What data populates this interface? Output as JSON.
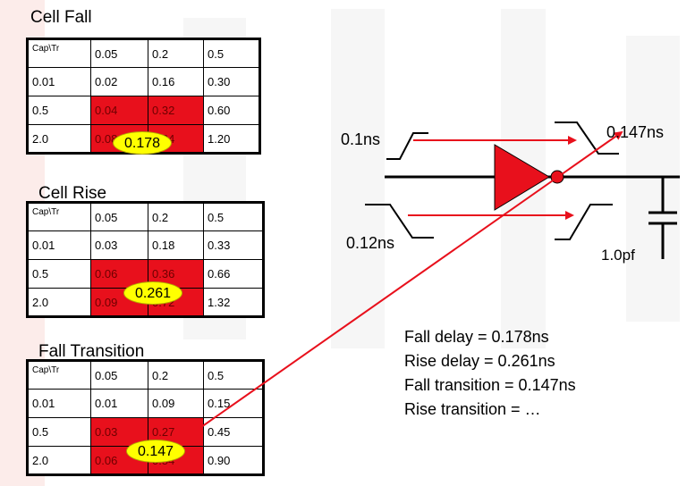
{
  "tables": [
    {
      "title": "Cell Fall",
      "rows": [
        [
          "Cap\\Tr",
          "0.05",
          "0.2",
          "0.5"
        ],
        [
          "0.01",
          "0.02",
          "0.16",
          "0.30"
        ],
        [
          "0.5",
          "0.04",
          "0.32",
          "0.60"
        ],
        [
          "2.0",
          "0.08",
          "0.64",
          "1.20"
        ]
      ],
      "result": "0.178"
    },
    {
      "title": "Cell Rise",
      "rows": [
        [
          "Cap\\Tr",
          "0.05",
          "0.2",
          "0.5"
        ],
        [
          "0.01",
          "0.03",
          "0.18",
          "0.33"
        ],
        [
          "0.5",
          "0.06",
          "0.36",
          "0.66"
        ],
        [
          "2.0",
          "0.09",
          "0.72",
          "1.32"
        ]
      ],
      "result": "0.261"
    },
    {
      "title": "Fall Transition",
      "rows": [
        [
          "Cap\\Tr",
          "0.05",
          "0.2",
          "0.5"
        ],
        [
          "0.01",
          "0.01",
          "0.09",
          "0.15"
        ],
        [
          "0.5",
          "0.03",
          "0.27",
          "0.45"
        ],
        [
          "2.0",
          "0.06",
          "0.54",
          "0.90"
        ]
      ],
      "result": "0.147"
    }
  ],
  "circuit": {
    "input_fall_label": "0.1ns",
    "input_rise_label": "0.12ns",
    "output_transition_label": "0.147ns",
    "load_label": "1.0pf"
  },
  "summary": [
    "Fall delay = 0.178ns",
    "Rise delay =  0.261ns",
    "Fall transition = 0.147ns",
    "Rise transition = …"
  ],
  "colors": {
    "highlight": "#e8101c",
    "oval": "#ffff00",
    "watermark": "#f7f7f7"
  }
}
